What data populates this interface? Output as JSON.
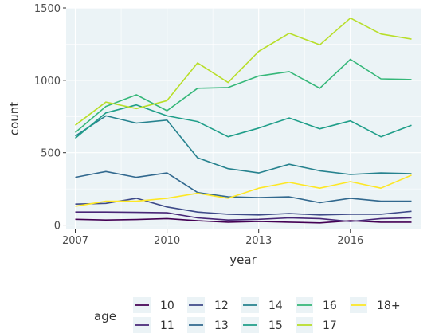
{
  "chart_data": {
    "type": "line",
    "xlabel": "year",
    "ylabel": "count",
    "xlim": [
      2006.7,
      2018.3
    ],
    "ylim": [
      -30,
      1500
    ],
    "xticks": [
      2007,
      2010,
      2013,
      2016
    ],
    "yticks": [
      0,
      500,
      1000,
      1500
    ],
    "x": [
      2007,
      2008,
      2009,
      2010,
      2011,
      2012,
      2013,
      2014,
      2015,
      2016,
      2017,
      2018
    ],
    "grid": true,
    "legend": {
      "title": "age",
      "position": "bottom"
    },
    "series": [
      {
        "name": "10",
        "color": "#440154",
        "values": [
          40,
          35,
          38,
          45,
          30,
          20,
          25,
          20,
          15,
          30,
          20,
          20
        ]
      },
      {
        "name": "11",
        "color": "#482677",
        "values": [
          90,
          90,
          88,
          85,
          50,
          35,
          40,
          50,
          45,
          25,
          45,
          50
        ]
      },
      {
        "name": "12",
        "color": "#3E4A89",
        "values": [
          145,
          150,
          185,
          125,
          90,
          75,
          70,
          80,
          70,
          75,
          75,
          95
        ]
      },
      {
        "name": "13",
        "color": "#31688E",
        "values": [
          330,
          370,
          330,
          360,
          225,
          195,
          190,
          195,
          155,
          185,
          165,
          165
        ]
      },
      {
        "name": "14",
        "color": "#26828E",
        "values": [
          615,
          755,
          705,
          725,
          465,
          390,
          360,
          420,
          375,
          350,
          360,
          355
        ]
      },
      {
        "name": "15",
        "color": "#1F9E89",
        "values": [
          600,
          775,
          830,
          755,
          715,
          610,
          670,
          740,
          665,
          720,
          610,
          690
        ]
      },
      {
        "name": "16",
        "color": "#35B779",
        "values": [
          640,
          820,
          900,
          790,
          945,
          950,
          1030,
          1060,
          945,
          1145,
          1010,
          1005
        ]
      },
      {
        "name": "17",
        "color": "#B8DE29",
        "values": [
          690,
          850,
          805,
          860,
          1120,
          985,
          1200,
          1325,
          1245,
          1430,
          1320,
          1285
        ]
      },
      {
        "name": "18+",
        "color": "#FDE725",
        "values": [
          130,
          165,
          165,
          185,
          220,
          185,
          255,
          295,
          255,
          300,
          255,
          345
        ]
      }
    ]
  }
}
